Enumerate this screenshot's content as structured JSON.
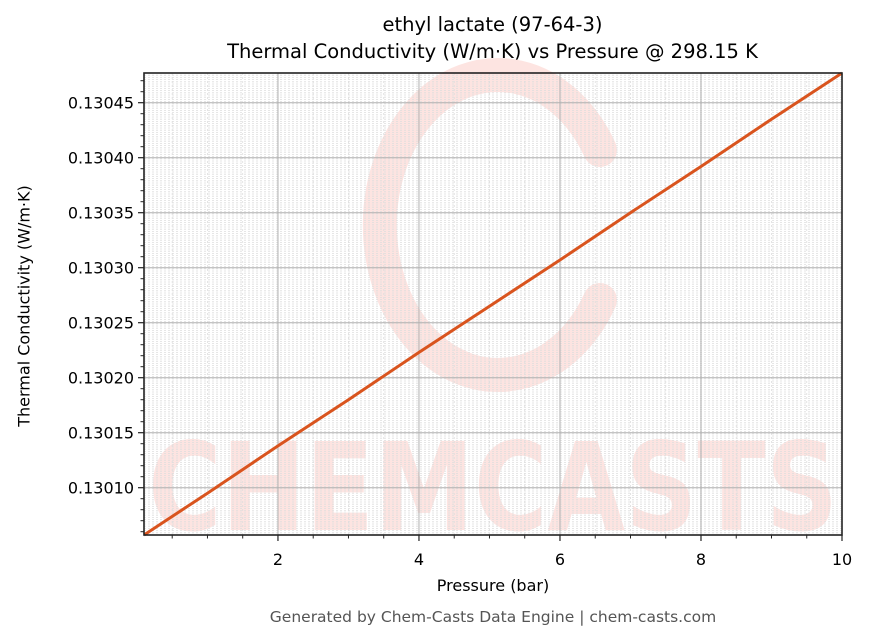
{
  "chart_data": {
    "type": "line",
    "title": "ethyl lactate (97-64-3)",
    "subtitle": "Thermal Conductivity (W/m·K) vs Pressure @ 298.15 K",
    "xlabel": "Pressure (bar)",
    "ylabel": "Thermal Conductivity (W/m·K)",
    "xlim": [
      0.1,
      10
    ],
    "ylim": [
      0.130057,
      0.130477
    ],
    "xticks": [
      2,
      4,
      6,
      8,
      10
    ],
    "xtick_labels": [
      "2",
      "4",
      "6",
      "8",
      "10"
    ],
    "yticks": [
      0.1301,
      0.13015,
      0.1302,
      0.13025,
      0.1303,
      0.13035,
      0.1304,
      0.13045
    ],
    "ytick_labels": [
      "0.13010",
      "0.13015",
      "0.13020",
      "0.13025",
      "0.13030",
      "0.13035",
      "0.13040",
      "0.13045"
    ],
    "grid": true,
    "minor_grid": true,
    "legend": null,
    "series": [
      {
        "name": "Thermal Conductivity",
        "color": "#d9541e",
        "x": [
          0.1,
          1,
          2,
          3,
          4,
          5,
          6,
          7,
          8,
          9,
          10
        ],
        "y": [
          0.130057,
          0.130095,
          0.130138,
          0.13018,
          0.130223,
          0.130265,
          0.130307,
          0.13035,
          0.130392,
          0.130435,
          0.130477
        ]
      }
    ]
  },
  "watermark": {
    "text": "CHEMCASTS",
    "color": "#fde4e1"
  },
  "footer": "Generated by Chem-Casts Data Engine | chem-casts.com"
}
